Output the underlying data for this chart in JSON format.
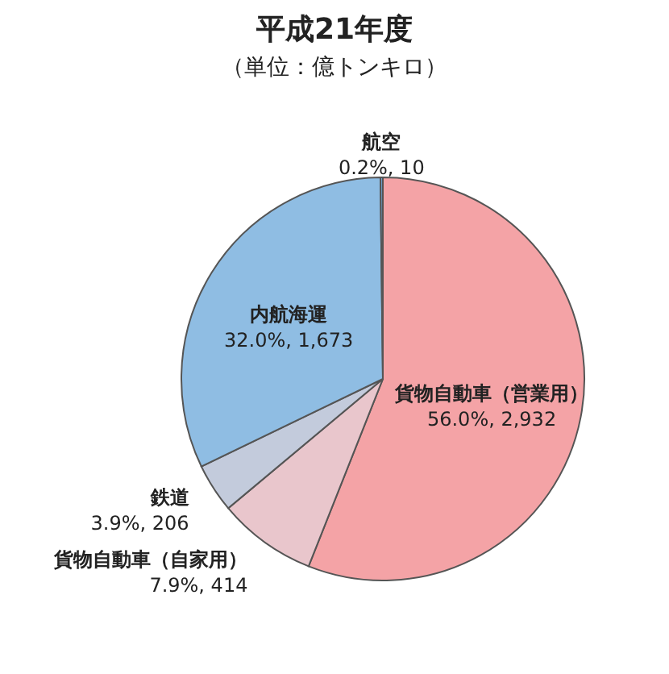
{
  "chart_data": {
    "type": "pie",
    "title": "平成21年度",
    "subtitle": "（単位：億トンキロ）",
    "categories": [
      "貨物自動車（営業用）",
      "貨物自動車（自家用）",
      "鉄道",
      "内航海運",
      "航空"
    ],
    "values": [
      2932,
      414,
      206,
      1673,
      10
    ],
    "value_labels": [
      "56.0%, 2,932",
      "7.9%, 414",
      "3.9%, 206",
      "32.0%, 1,673",
      "0.2%, 10"
    ],
    "colors": [
      "#f4a3a6",
      "#e9c6cc",
      "#c3cbdc",
      "#8fbde3",
      "#6fa6d6"
    ]
  }
}
